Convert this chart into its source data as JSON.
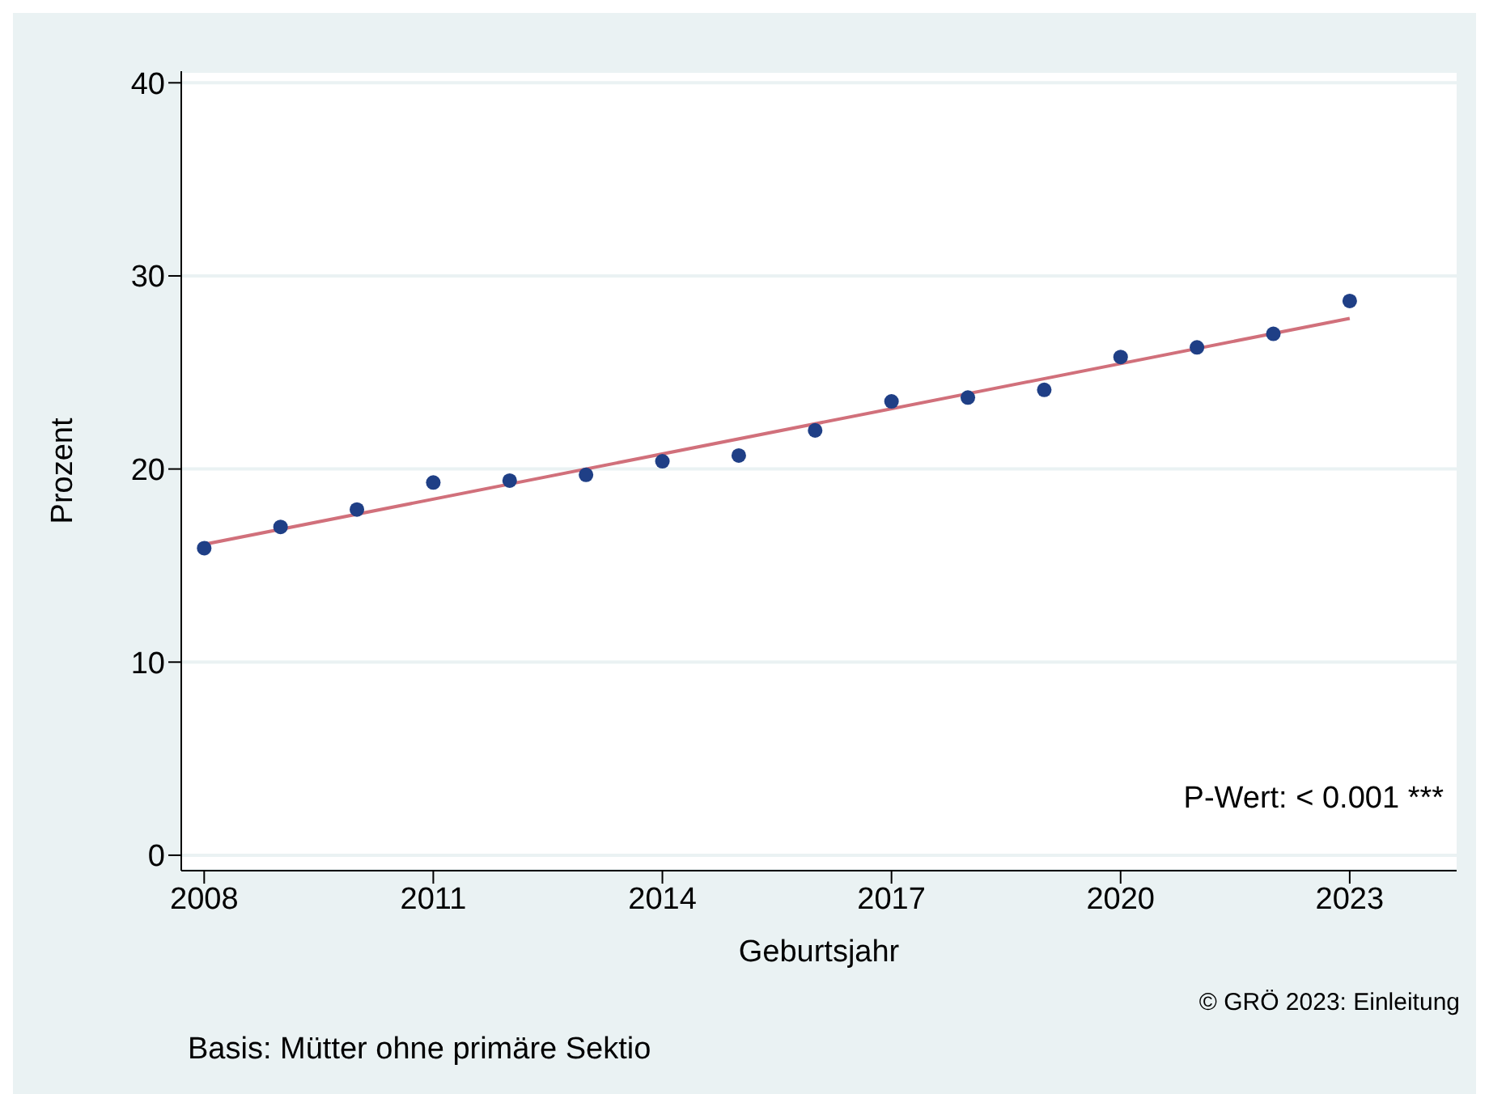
{
  "chart_data": {
    "type": "scatter",
    "xlabel": "Geburtsjahr",
    "ylabel": "Prozent",
    "x": [
      2008,
      2009,
      2010,
      2011,
      2012,
      2013,
      2014,
      2015,
      2016,
      2017,
      2018,
      2019,
      2020,
      2021,
      2022,
      2023
    ],
    "series": [
      {
        "marker": "circle",
        "color": "#1f3f86",
        "values": [
          15.9,
          17.0,
          17.9,
          19.3,
          19.4,
          19.7,
          20.4,
          20.7,
          22.0,
          23.5,
          23.7,
          24.1,
          25.8,
          26.3,
          27.0,
          28.7
        ]
      },
      {
        "type": "line",
        "color": "#d1707b",
        "x": [
          2008,
          2023
        ],
        "values": [
          16.1,
          27.8
        ]
      }
    ],
    "xlim": [
      2007.7,
      2024.4
    ],
    "xticks": [
      2008,
      2011,
      2014,
      2017,
      2020,
      2023
    ],
    "ylim": [
      -0.8,
      40.6
    ],
    "yticks": [
      0,
      10,
      20,
      30,
      40
    ],
    "grid": "y",
    "legend": false,
    "annotations": [
      "P-Wert: < 0.001 ***",
      "© GRÖ 2023: Einleitung",
      "Basis: Mütter ohne primäre Sektio"
    ]
  }
}
